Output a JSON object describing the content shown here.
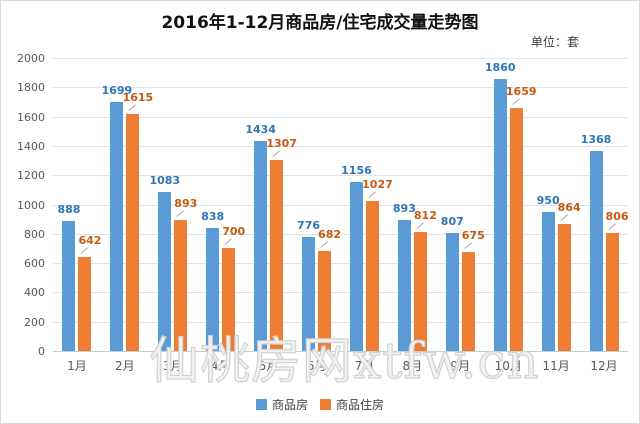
{
  "title": "2016年1-12月商品房/住宅成交量走势图",
  "unit_label": "单位：套",
  "watermark": "仙桃房网xtfw.cn",
  "colors": {
    "series_blue": "#5B9BD5",
    "series_orange": "#ED7D31",
    "label_blue": "#2E75B6",
    "label_orange": "#C55A11",
    "gridline": "#dbe3ee",
    "axis_text": "#595959"
  },
  "chart_data": {
    "type": "bar",
    "title": "2016年1-12月商品房/住宅成交量走势图",
    "unit": "单位：套",
    "categories": [
      "1月",
      "2月",
      "3月",
      "4月",
      "5月",
      "6月",
      "7月",
      "8月",
      "9月",
      "10月",
      "11月",
      "12月"
    ],
    "series": [
      {
        "name": "商品房",
        "color": "#5B9BD5",
        "label_color": "#2E75B6",
        "values": [
          888,
          1699,
          1083,
          838,
          1434,
          776,
          1156,
          893,
          807,
          1860,
          950,
          1368
        ]
      },
      {
        "name": "商品住房",
        "color": "#ED7D31",
        "label_color": "#C55A11",
        "values": [
          642,
          1615,
          893,
          700,
          1307,
          682,
          1027,
          812,
          675,
          1659,
          864,
          806
        ]
      }
    ],
    "ylim": [
      0,
      2000
    ],
    "ytick_step": 200,
    "ytick_labels": [
      "0",
      "200",
      "400",
      "600",
      "800",
      "1000",
      "1200",
      "1400",
      "1600",
      "1800",
      "2000"
    ],
    "grid": true,
    "data_labels": true,
    "legend_position": "bottom"
  }
}
